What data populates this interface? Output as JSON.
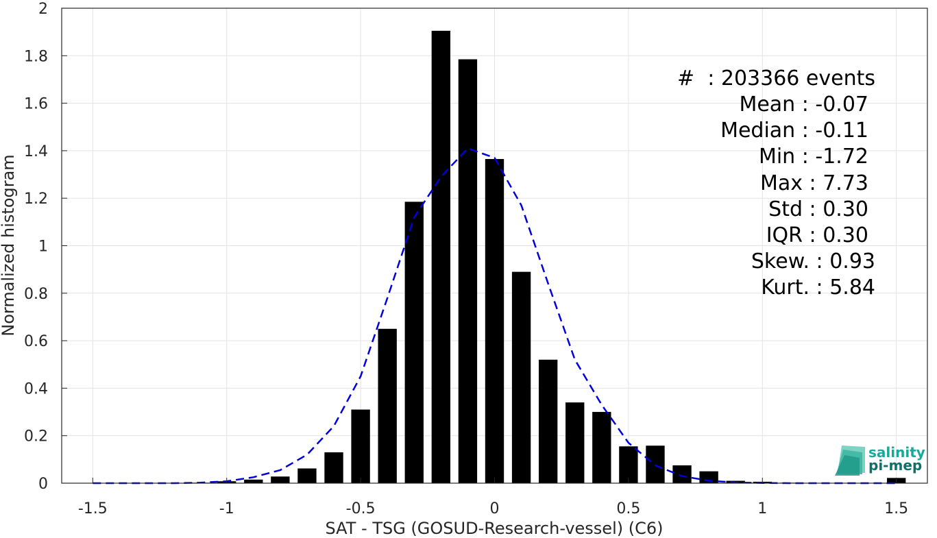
{
  "chart_data": {
    "type": "bar",
    "xlabel": "SAT - TSG (GOSUD-Research-vessel) (C6)",
    "ylabel": "Normalized histogram",
    "xlim": [
      -1.5,
      1.5
    ],
    "ylim": [
      0,
      2
    ],
    "grid": true,
    "xticks": [
      -1.5,
      -1,
      -0.5,
      0,
      0.5,
      1,
      1.5
    ],
    "xtick_labels": [
      "-1.5",
      "-1",
      "-0.5",
      "0",
      "0.5",
      "1",
      "1.5"
    ],
    "yticks": [
      0,
      0.2,
      0.4,
      0.6,
      0.8,
      1,
      1.2,
      1.4,
      1.6,
      1.8,
      2
    ],
    "ytick_labels": [
      "0",
      "0.2",
      "0.4",
      "0.6",
      "0.8",
      "1",
      "1.2",
      "1.4",
      "1.6",
      "1.8",
      "2"
    ],
    "bar_width": 0.07,
    "bar_color": "#000000",
    "bars": {
      "x": [
        -1.5,
        -1.4,
        -1.3,
        -1.2,
        -1.1,
        -1.0,
        -0.9,
        -0.8,
        -0.7,
        -0.6,
        -0.5,
        -0.4,
        -0.3,
        -0.2,
        -0.1,
        0.0,
        0.1,
        0.2,
        0.3,
        0.4,
        0.5,
        0.6,
        0.7,
        0.8,
        0.9,
        1.0,
        1.1,
        1.2,
        1.3,
        1.4,
        1.5
      ],
      "values": [
        0,
        0,
        0,
        0,
        0.002,
        0.008,
        0.015,
        0.028,
        0.062,
        0.13,
        0.31,
        0.65,
        1.185,
        1.905,
        1.785,
        1.365,
        0.89,
        0.52,
        0.34,
        0.3,
        0.155,
        0.158,
        0.075,
        0.05,
        0.01,
        0.006,
        0.002,
        0.001,
        0.001,
        0.001,
        0.022
      ]
    },
    "fit_curve": {
      "style": "dashed",
      "color": "#0000dd",
      "x": [
        -1.5,
        -1.4,
        -1.3,
        -1.2,
        -1.1,
        -1.0,
        -0.9,
        -0.8,
        -0.7,
        -0.6,
        -0.5,
        -0.4,
        -0.3,
        -0.2,
        -0.1,
        0.0,
        0.1,
        0.2,
        0.3,
        0.4,
        0.5,
        0.6,
        0.7,
        0.8,
        0.9,
        1.0,
        1.1,
        1.2,
        1.3,
        1.4,
        1.5
      ],
      "y": [
        0.0,
        0.0,
        0.0,
        0.0,
        0.002,
        0.008,
        0.025,
        0.055,
        0.12,
        0.24,
        0.45,
        0.78,
        1.12,
        1.29,
        1.41,
        1.37,
        1.17,
        0.84,
        0.52,
        0.33,
        0.17,
        0.075,
        0.03,
        0.01,
        0.003,
        0.001,
        0.0,
        0.0,
        0.0,
        0.0,
        0.0
      ]
    },
    "stats_lines": [
      "#  : 203366 events",
      "Mean : -0.07",
      "Median : -0.11",
      "Min : -1.72",
      "Max : 7.73",
      "Std : 0.30",
      "IQR : 0.30",
      "Skew. : 0.93",
      "Kurt. : 5.84"
    ]
  },
  "logo": {
    "line1": "salinity",
    "line2": "pi-mep",
    "color1": "#1aa89a",
    "color2": "#0f6f6a"
  }
}
